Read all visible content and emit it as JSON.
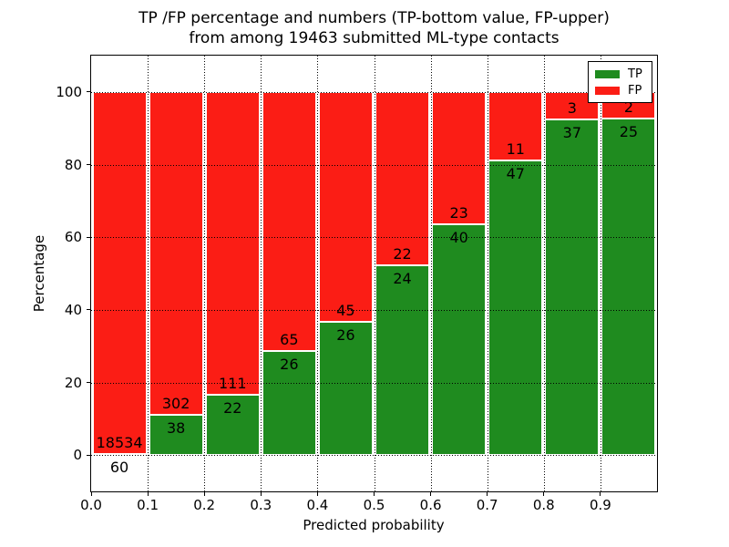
{
  "figure": {
    "title_line1": "TP /FP percentage and numbers (TP-bottom value, FP-upper)",
    "title_line2": "from among 19463 submitted ML-type contacts"
  },
  "chart_data": {
    "type": "bar",
    "stacked": true,
    "title": "TP /FP percentage and numbers (TP-bottom value, FP-upper)\nfrom among 19463 submitted ML-type contacts",
    "xlabel": "Predicted probability",
    "ylabel": "Percentage",
    "xlim": [
      0.0,
      1.0
    ],
    "ylim": [
      -10,
      110
    ],
    "grid": true,
    "x_tick_labels": [
      "0.0",
      "0.1",
      "0.2",
      "0.3",
      "0.4",
      "0.5",
      "0.6",
      "0.7",
      "0.8",
      "0.9"
    ],
    "y_tick_values": [
      0,
      20,
      40,
      60,
      80,
      100
    ],
    "bin_width": 0.1,
    "bin_starts": [
      0.0,
      0.1,
      0.2,
      0.3,
      0.4,
      0.5,
      0.6,
      0.7,
      0.8,
      0.9
    ],
    "series": [
      {
        "name": "TP",
        "color": "#1f8b1f",
        "counts": [
          60,
          38,
          22,
          26,
          26,
          24,
          40,
          47,
          37,
          25
        ]
      },
      {
        "name": "FP",
        "color": "#fb1d15",
        "counts": [
          18534,
          302,
          111,
          65,
          45,
          22,
          23,
          11,
          3,
          2
        ]
      }
    ],
    "tp_percent": [
      0.32,
      11.18,
      16.54,
      28.57,
      36.62,
      52.17,
      63.49,
      81.03,
      92.5,
      92.59
    ],
    "total_contacts": 19463,
    "legend": {
      "position": "upper right",
      "entries": [
        {
          "label": "TP",
          "color": "#1f8b1f"
        },
        {
          "label": "FP",
          "color": "#fb1d15"
        }
      ]
    }
  }
}
